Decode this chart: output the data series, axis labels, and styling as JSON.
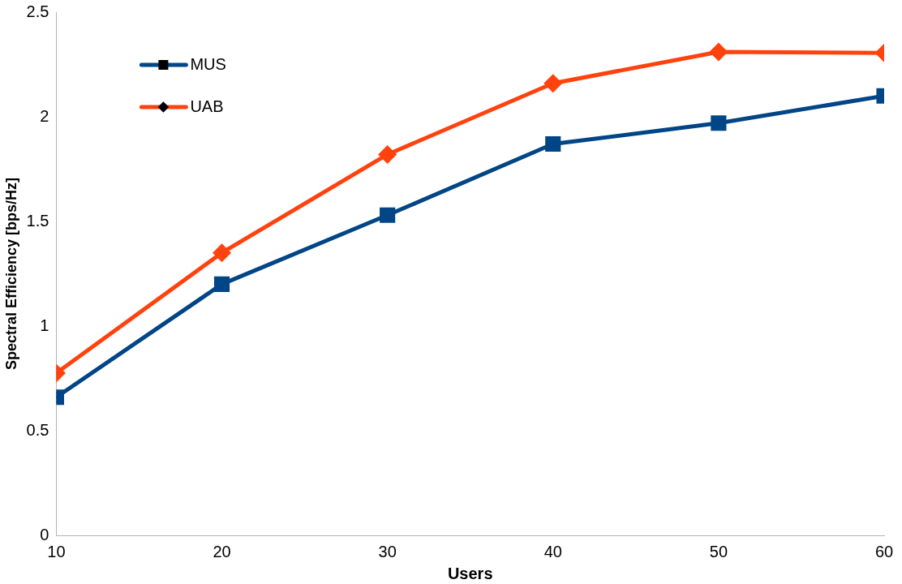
{
  "chart_data": {
    "type": "line",
    "xlabel": "Users",
    "ylabel": "Spectral Efficiency [bps/Hz]",
    "x": [
      10,
      20,
      30,
      40,
      50,
      60
    ],
    "series": [
      {
        "name": "MUS",
        "color": "#004586",
        "marker": "square",
        "values": [
          0.66,
          1.2,
          1.53,
          1.87,
          1.97,
          2.1
        ]
      },
      {
        "name": "UAB",
        "color": "#ff420e",
        "marker": "diamond",
        "values": [
          0.775,
          1.35,
          1.82,
          2.16,
          2.31,
          2.305
        ]
      }
    ],
    "xlim": [
      10,
      60
    ],
    "xticks": [
      10,
      20,
      30,
      40,
      50,
      60
    ],
    "ylim": [
      0,
      2.5
    ],
    "yticks": [
      0,
      0.5,
      1,
      1.5,
      2,
      2.5
    ],
    "grid": false,
    "legend": "top left",
    "line_style": "solid"
  }
}
